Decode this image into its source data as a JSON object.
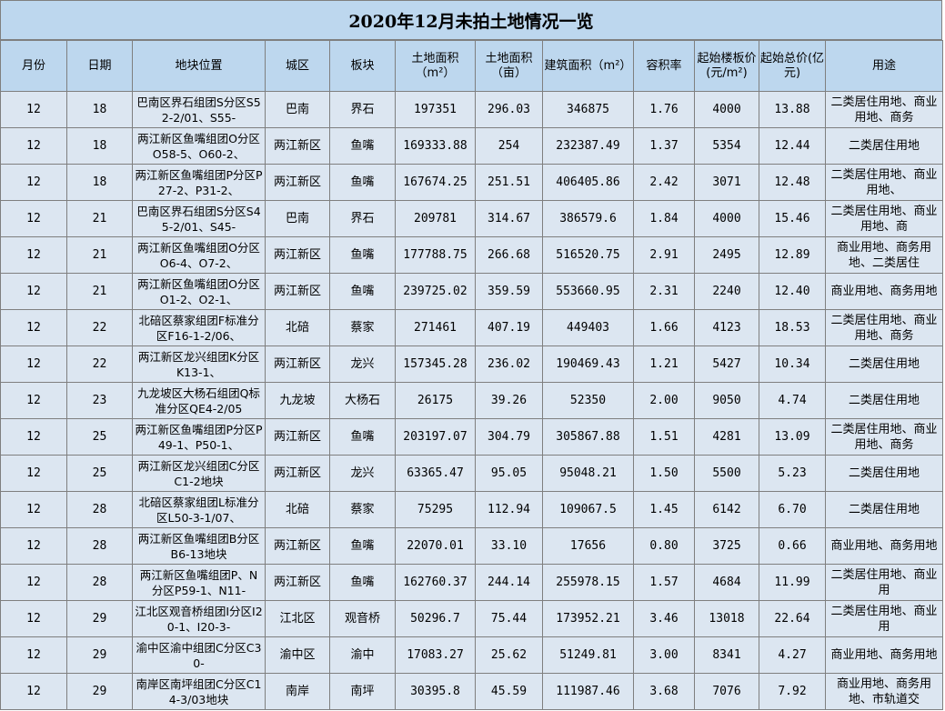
{
  "title": "2020年12月未拍土地情况一览",
  "headers": [
    "月份",
    "日期",
    "地块位置",
    "城区",
    "板块",
    "土地面积（m²）",
    "土地面积（亩）",
    "建筑面积（m²）",
    "容积率",
    "起始楼板价(元/m²)",
    "起始总价(亿元)",
    "用途"
  ],
  "rows": [
    [
      "12",
      "18",
      "巴南区界石组团S分区S52-2/01、S55-",
      "巴南",
      "界石",
      "197351",
      "296.03",
      "346875",
      "1.76",
      "4000",
      "13.88",
      "二类居住用地、商业用地、商务"
    ],
    [
      "12",
      "18",
      "两江新区鱼嘴组团O分区O58-5、O60-2、",
      "两江新区",
      "鱼嘴",
      "169333.88",
      "254",
      "232387.49",
      "1.37",
      "5354",
      "12.44",
      "二类居住用地"
    ],
    [
      "12",
      "18",
      "两江新区鱼嘴组团P分区P27-2、P31-2、",
      "两江新区",
      "鱼嘴",
      "167674.25",
      "251.51",
      "406405.86",
      "2.42",
      "3071",
      "12.48",
      "二类居住用地、商业用地、"
    ],
    [
      "12",
      "21",
      "巴南区界石组团S分区S45-2/01、S45-",
      "巴南",
      "界石",
      "209781",
      "314.67",
      "386579.6",
      "1.84",
      "4000",
      "15.46",
      "二类居住用地、商业用地、商"
    ],
    [
      "12",
      "21",
      "两江新区鱼嘴组团O分区O6-4、O7-2、",
      "两江新区",
      "鱼嘴",
      "177788.75",
      "266.68",
      "516520.75",
      "2.91",
      "2495",
      "12.89",
      "商业用地、商务用地、二类居住"
    ],
    [
      "12",
      "21",
      "两江新区鱼嘴组团O分区O1-2、O2-1、",
      "两江新区",
      "鱼嘴",
      "239725.02",
      "359.59",
      "553660.95",
      "2.31",
      "2240",
      "12.40",
      "商业用地、商务用地"
    ],
    [
      "12",
      "22",
      "北碚区蔡家组团F标准分区F16-1-2/06、",
      "北碚",
      "蔡家",
      "271461",
      "407.19",
      "449403",
      "1.66",
      "4123",
      "18.53",
      "二类居住用地、商业用地、商务"
    ],
    [
      "12",
      "22",
      "两江新区龙兴组团K分区K13-1、",
      "两江新区",
      "龙兴",
      "157345.28",
      "236.02",
      "190469.43",
      "1.21",
      "5427",
      "10.34",
      "二类居住用地"
    ],
    [
      "12",
      "23",
      "九龙坡区大杨石组团Q标准分区QE4-2/05",
      "九龙坡",
      "大杨石",
      "26175",
      "39.26",
      "52350",
      "2.00",
      "9050",
      "4.74",
      "二类居住用地"
    ],
    [
      "12",
      "25",
      "两江新区鱼嘴组团P分区P49-1、P50-1、",
      "两江新区",
      "鱼嘴",
      "203197.07",
      "304.79",
      "305867.88",
      "1.51",
      "4281",
      "13.09",
      "二类居住用地、商业用地、商务"
    ],
    [
      "12",
      "25",
      "两江新区龙兴组团C分区C1-2地块",
      "两江新区",
      "龙兴",
      "63365.47",
      "95.05",
      "95048.21",
      "1.50",
      "5500",
      "5.23",
      "二类居住用地"
    ],
    [
      "12",
      "28",
      "北碚区蔡家组团L标准分区L50-3-1/07、",
      "北碚",
      "蔡家",
      "75295",
      "112.94",
      "109067.5",
      "1.45",
      "6142",
      "6.70",
      "二类居住用地"
    ],
    [
      "12",
      "28",
      "两江新区鱼嘴组团B分区B6-13地块",
      "两江新区",
      "鱼嘴",
      "22070.01",
      "33.10",
      "17656",
      "0.80",
      "3725",
      "0.66",
      "商业用地、商务用地"
    ],
    [
      "12",
      "28",
      "两江新区鱼嘴组团P、N分区P59-1、N11-",
      "两江新区",
      "鱼嘴",
      "162760.37",
      "244.14",
      "255978.15",
      "1.57",
      "4684",
      "11.99",
      "二类居住用地、商业用"
    ],
    [
      "12",
      "29",
      "江北区观音桥组团I分区I20-1、I20-3-",
      "江北区",
      "观音桥",
      "50296.7",
      "75.44",
      "173952.21",
      "3.46",
      "13018",
      "22.64",
      "二类居住用地、商业用"
    ],
    [
      "12",
      "29",
      "渝中区渝中组团C分区C30-",
      "渝中区",
      "渝中",
      "17083.27",
      "25.62",
      "51249.81",
      "3.00",
      "8341",
      "4.27",
      "商业用地、商务用地"
    ],
    [
      "12",
      "29",
      "南岸区南坪组团C分区C14-3/03地块",
      "南岸",
      "南坪",
      "30395.8",
      "45.59",
      "111987.46",
      "3.68",
      "7076",
      "7.92",
      "商业用地、商务用地、市轨道交"
    ]
  ]
}
